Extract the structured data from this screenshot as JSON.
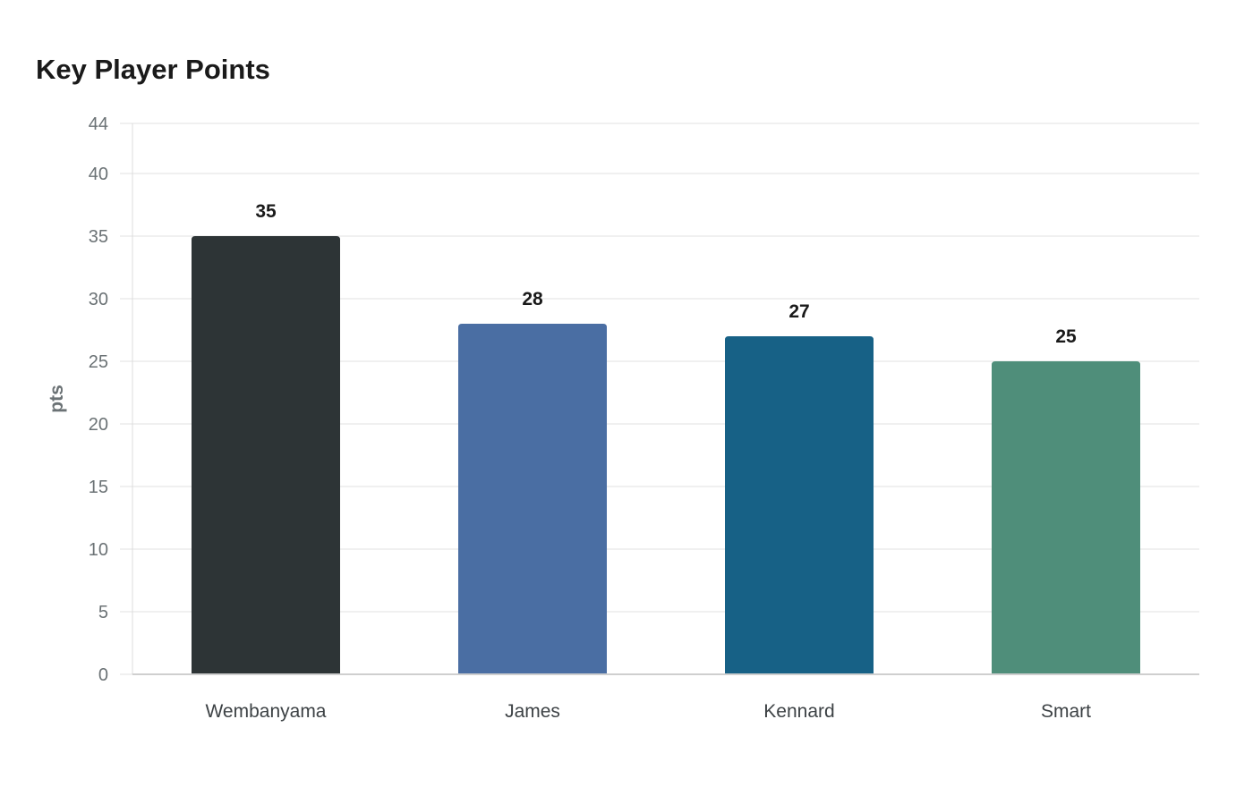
{
  "chart_data": {
    "type": "bar",
    "title": "Key Player Points",
    "xlabel": "",
    "ylabel": "pts",
    "categories": [
      "Wembanyama",
      "James",
      "Kennard",
      "Smart"
    ],
    "values": [
      35,
      28,
      27,
      25
    ],
    "colors": [
      "#2d3436",
      "#4a6ea3",
      "#176186",
      "#4f8e7a"
    ],
    "ylim": [
      0,
      44
    ],
    "yticks": [
      0,
      5,
      10,
      15,
      20,
      25,
      30,
      35,
      40,
      44
    ],
    "grid": true,
    "data_labels": true
  }
}
